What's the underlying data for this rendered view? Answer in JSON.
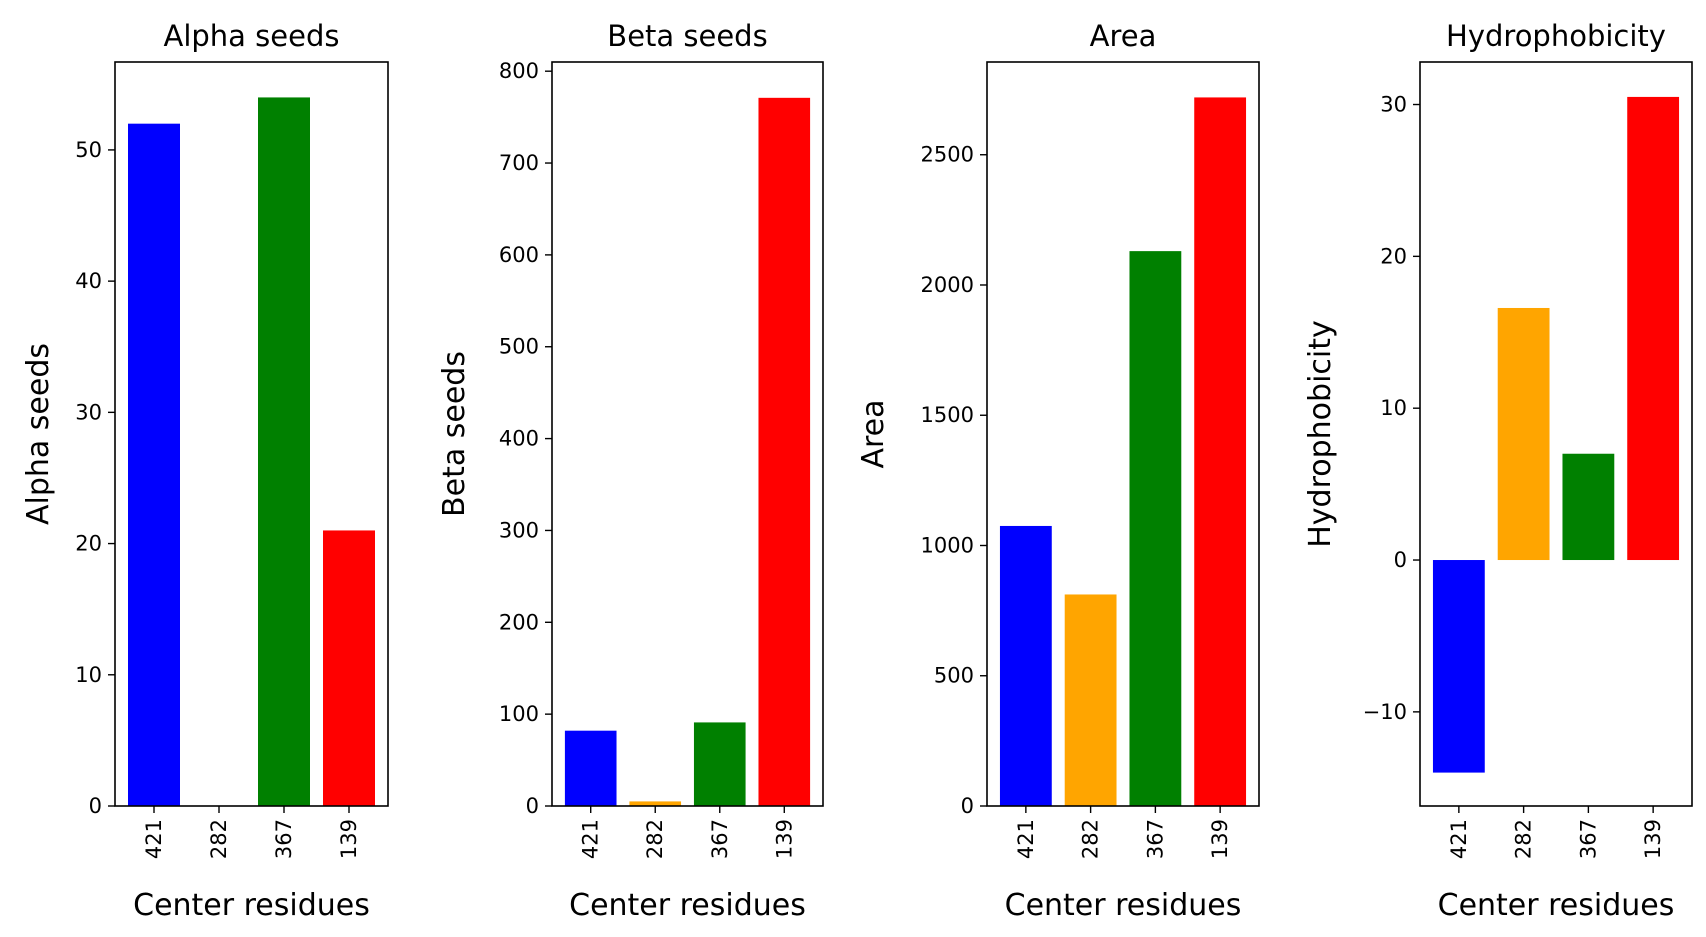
{
  "chart_data": [
    {
      "type": "bar",
      "title": "Alpha seeds",
      "xlabel": "Center residues",
      "ylabel": "Alpha seeds",
      "categories": [
        "421",
        "282",
        "367",
        "139"
      ],
      "values": [
        52,
        0,
        54,
        21
      ],
      "colors": [
        "#0000ff",
        "#ffa500",
        "#008000",
        "#ff0000"
      ],
      "ylim": [
        0,
        56.7
      ],
      "yticks": [
        0,
        10,
        20,
        30,
        40,
        50
      ],
      "grid": false
    },
    {
      "type": "bar",
      "title": "Beta seeds",
      "xlabel": "Center residues",
      "ylabel": "Beta seeds",
      "categories": [
        "421",
        "282",
        "367",
        "139"
      ],
      "values": [
        82,
        5,
        91,
        771
      ],
      "colors": [
        "#0000ff",
        "#ffa500",
        "#008000",
        "#ff0000"
      ],
      "ylim": [
        0,
        810
      ],
      "yticks": [
        0,
        100,
        200,
        300,
        400,
        500,
        600,
        700,
        800
      ],
      "grid": false
    },
    {
      "type": "bar",
      "title": "Area",
      "xlabel": "Center residues",
      "ylabel": "Area",
      "categories": [
        "421",
        "282",
        "367",
        "139"
      ],
      "values": [
        1075,
        812,
        2130,
        2720
      ],
      "colors": [
        "#0000ff",
        "#ffa500",
        "#008000",
        "#ff0000"
      ],
      "ylim": [
        0,
        2856
      ],
      "yticks": [
        0,
        500,
        1000,
        1500,
        2000,
        2500
      ],
      "grid": false
    },
    {
      "type": "bar",
      "title": "Hydrophobicity",
      "xlabel": "Center residues",
      "ylabel": "Hydrophobicity",
      "categories": [
        "421",
        "282",
        "367",
        "139"
      ],
      "values": [
        -14,
        16.6,
        7,
        30.5
      ],
      "colors": [
        "#0000ff",
        "#ffa500",
        "#008000",
        "#ff0000"
      ],
      "ylim": [
        -16.2,
        32.8
      ],
      "yticks": [
        -10,
        0,
        10,
        20,
        30
      ],
      "grid": false
    }
  ]
}
